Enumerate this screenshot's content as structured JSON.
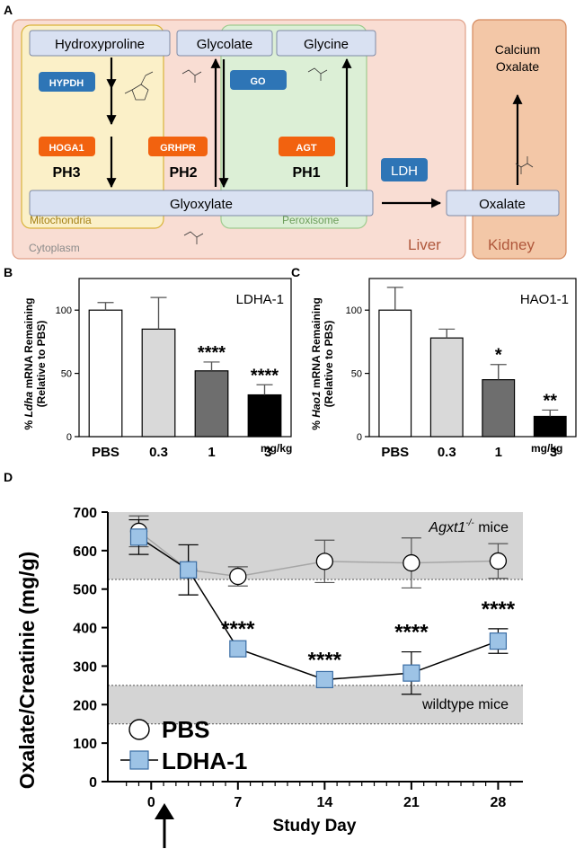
{
  "colors": {
    "cytoplasm_fill": "#f9ddd3",
    "cytoplasm_stroke": "#e0a088",
    "mito_fill": "#fbf0c8",
    "mito_stroke": "#d9b33a",
    "perox_fill": "#dcefd6",
    "perox_stroke": "#9fcb8f",
    "kidney_fill": "#f3c7a7",
    "kidney_stroke": "#d4885c",
    "compound_fill": "#d9e1f2",
    "compound_stroke": "#7e8aa6",
    "enzyme_blue": "#2e75b6",
    "enzyme_orange": "#f2620f",
    "pbs_bar": "#ffffff",
    "dose03_bar": "#d9d9d9",
    "dose1_bar": "#6e6e6e",
    "dose3_bar": "#000000",
    "band": "#d4d4d4",
    "pbs_line": "#a6a6a6",
    "ldha_marker": "#9dc3e6",
    "ldha_marker_stroke": "#3b6ea5"
  },
  "panel_a": {
    "label": "A",
    "compounds": {
      "hydroxyproline": "Hydroxyproline",
      "glycolate": "Glycolate",
      "glycine": "Glycine",
      "glyoxylate": "Glyoxylate",
      "oxalate": "Oxalate",
      "calcium_oxalate_l1": "Calcium",
      "calcium_oxalate_l2": "Oxalate"
    },
    "enzymes": {
      "hypdh": "HYPDH",
      "hoga1": "HOGA1",
      "grhpr": "GRHPR",
      "go": "GO",
      "agt": "AGT",
      "ldh": "LDH"
    },
    "disorders": {
      "ph3": "PH3",
      "ph2": "PH2",
      "ph1": "PH1"
    },
    "compartments": {
      "mitochondria": "Mitochondria",
      "peroxisome": "Peroxisome",
      "cytoplasm": "Cytoplasm",
      "liver": "Liver",
      "kidney": "Kidney"
    }
  },
  "chart_data": [
    {
      "panel": "B",
      "type": "bar",
      "title": "LDHA-1",
      "ylabel_prefix": "% ",
      "ylabel_gene": "Ldha",
      "ylabel_suffix": " mRNA Remaining",
      "ylabel_line2": "(Relative to PBS)",
      "categories": [
        "PBS",
        "0.3",
        "1",
        "3"
      ],
      "unit_label": "mg/kg",
      "values": [
        100,
        85,
        52,
        33
      ],
      "errors": [
        6,
        25,
        7,
        8
      ],
      "significance": [
        "",
        "",
        "****",
        "****"
      ],
      "ylim": [
        0,
        125
      ],
      "yticks": [
        0,
        50,
        100
      ]
    },
    {
      "panel": "C",
      "type": "bar",
      "title": "HAO1-1",
      "ylabel_prefix": "% ",
      "ylabel_gene": "Hao1",
      "ylabel_suffix": " mRNA Remaining",
      "ylabel_line2": "(Relative to PBS)",
      "categories": [
        "PBS",
        "0.3",
        "1",
        "3"
      ],
      "unit_label": "mg/kg",
      "values": [
        100,
        78,
        45,
        16
      ],
      "errors": [
        18,
        7,
        12,
        5
      ],
      "significance": [
        "",
        "",
        "*",
        "**"
      ],
      "ylim": [
        0,
        125
      ],
      "yticks": [
        0,
        50,
        100
      ]
    },
    {
      "panel": "D",
      "type": "line",
      "ylabel": "Oxalate/Creatinie (mg/g)",
      "xlabel": "Study Day",
      "xticks": [
        0,
        7,
        14,
        21,
        28
      ],
      "yticks": [
        0,
        100,
        200,
        300,
        400,
        500,
        600,
        700
      ],
      "xlim": [
        -3.5,
        30
      ],
      "ylim": [
        0,
        700
      ],
      "bands": [
        {
          "name": "agxt1",
          "range": [
            525,
            700
          ],
          "label_gene": "Agxt1",
          "label_sup": "-/-",
          "label_rest": " mice"
        },
        {
          "name": "wildtype",
          "range": [
            150,
            250
          ],
          "label": "wildtype mice"
        }
      ],
      "series": [
        {
          "name": "PBS",
          "x": [
            -1,
            3,
            7,
            14,
            21,
            28
          ],
          "y": [
            650,
            550,
            533,
            572,
            568,
            573
          ],
          "err": [
            40,
            65,
            25,
            55,
            65,
            45
          ],
          "significance": [
            "",
            "",
            "",
            "",
            "",
            ""
          ]
        },
        {
          "name": "LDHA-1",
          "x": [
            -1,
            3,
            7,
            14,
            21,
            28
          ],
          "y": [
            635,
            550,
            345,
            265,
            282,
            365
          ],
          "err": [
            45,
            65,
            0,
            0,
            55,
            32
          ],
          "significance": [
            "",
            "",
            "****",
            "****",
            "****",
            "****"
          ]
        }
      ]
    }
  ]
}
